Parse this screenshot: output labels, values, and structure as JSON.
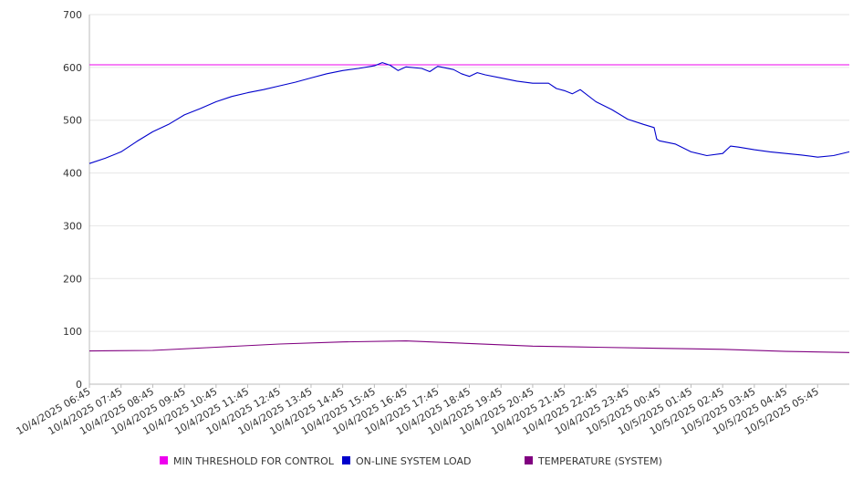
{
  "chart_data": {
    "type": "line",
    "title": "",
    "xlabel": "",
    "ylabel": "",
    "ylim": [
      0,
      700
    ],
    "yticks": [
      0,
      100,
      200,
      300,
      400,
      500,
      600,
      700
    ],
    "grid": true,
    "legend_position": "bottom",
    "x_tick_labels": [
      "10/4/2025 06:45",
      "10/4/2025 07:45",
      "10/4/2025 08:45",
      "10/4/2025 09:45",
      "10/4/2025 10:45",
      "10/4/2025 11:45",
      "10/4/2025 12:45",
      "10/4/2025 13:45",
      "10/4/2025 14:45",
      "10/4/2025 15:45",
      "10/4/2025 16:45",
      "10/4/2025 17:45",
      "10/4/2025 18:45",
      "10/4/2025 19:45",
      "10/4/2025 20:45",
      "10/4/2025 21:45",
      "10/4/2025 22:45",
      "10/4/2025 23:45",
      "10/5/2025 00:45",
      "10/5/2025 01:45",
      "10/5/2025 02:45",
      "10/5/2025 03:45",
      "10/5/2025 04:45",
      "10/5/2025 05:45"
    ],
    "x_range": [
      "10/4/2025 06:45",
      "10/5/2025 06:45"
    ],
    "series": [
      {
        "name": "MIN THRESHOLD FOR CONTROL",
        "color": "#ee00ee",
        "points": [
          [
            "10/4/2025 06:45",
            605
          ],
          [
            "10/5/2025 06:45",
            605
          ]
        ]
      },
      {
        "name": "ON-LINE SYSTEM LOAD",
        "color": "#0000cc",
        "points": [
          [
            "10/4/2025 06:45",
            418
          ],
          [
            "10/4/2025 07:15",
            428
          ],
          [
            "10/4/2025 07:45",
            440
          ],
          [
            "10/4/2025 08:15",
            460
          ],
          [
            "10/4/2025 08:45",
            478
          ],
          [
            "10/4/2025 09:15",
            492
          ],
          [
            "10/4/2025 09:45",
            510
          ],
          [
            "10/4/2025 10:15",
            522
          ],
          [
            "10/4/2025 10:45",
            535
          ],
          [
            "10/4/2025 11:15",
            545
          ],
          [
            "10/4/2025 11:45",
            552
          ],
          [
            "10/4/2025 12:15",
            558
          ],
          [
            "10/4/2025 12:45",
            565
          ],
          [
            "10/4/2025 13:15",
            572
          ],
          [
            "10/4/2025 13:45",
            580
          ],
          [
            "10/4/2025 14:15",
            588
          ],
          [
            "10/4/2025 14:45",
            594
          ],
          [
            "10/4/2025 15:15",
            598
          ],
          [
            "10/4/2025 15:45",
            603
          ],
          [
            "10/4/2025 16:00",
            609
          ],
          [
            "10/4/2025 16:15",
            604
          ],
          [
            "10/4/2025 16:30",
            594
          ],
          [
            "10/4/2025 16:45",
            601
          ],
          [
            "10/4/2025 17:15",
            598
          ],
          [
            "10/4/2025 17:30",
            592
          ],
          [
            "10/4/2025 17:45",
            602
          ],
          [
            "10/4/2025 18:15",
            596
          ],
          [
            "10/4/2025 18:30",
            588
          ],
          [
            "10/4/2025 18:45",
            583
          ],
          [
            "10/4/2025 19:00",
            590
          ],
          [
            "10/4/2025 19:15",
            586
          ],
          [
            "10/4/2025 19:45",
            580
          ],
          [
            "10/4/2025 20:15",
            574
          ],
          [
            "10/4/2025 20:45",
            570
          ],
          [
            "10/4/2025 21:15",
            570
          ],
          [
            "10/4/2025 21:30",
            560
          ],
          [
            "10/4/2025 21:45",
            556
          ],
          [
            "10/4/2025 22:00",
            550
          ],
          [
            "10/4/2025 22:15",
            558
          ],
          [
            "10/4/2025 22:45",
            535
          ],
          [
            "10/4/2025 23:15",
            520
          ],
          [
            "10/4/2025 23:45",
            502
          ],
          [
            "10/5/2025 00:15",
            492
          ],
          [
            "10/5/2025 00:35",
            486
          ],
          [
            "10/5/2025 00:40",
            464
          ],
          [
            "10/5/2025 00:45",
            461
          ],
          [
            "10/5/2025 01:15",
            455
          ],
          [
            "10/5/2025 01:45",
            440
          ],
          [
            "10/5/2025 02:15",
            433
          ],
          [
            "10/5/2025 02:45",
            437
          ],
          [
            "10/5/2025 03:00",
            451
          ],
          [
            "10/5/2025 03:15",
            449
          ],
          [
            "10/5/2025 03:45",
            444
          ],
          [
            "10/5/2025 04:15",
            440
          ],
          [
            "10/5/2025 04:45",
            437
          ],
          [
            "10/5/2025 05:15",
            434
          ],
          [
            "10/5/2025 05:45",
            430
          ],
          [
            "10/5/2025 06:15",
            433
          ],
          [
            "10/5/2025 06:45",
            440
          ]
        ]
      },
      {
        "name": "TEMPERATURE (SYSTEM)",
        "color": "#800080",
        "points": [
          [
            "10/4/2025 06:45",
            63
          ],
          [
            "10/4/2025 08:45",
            64
          ],
          [
            "10/4/2025 10:45",
            70
          ],
          [
            "10/4/2025 12:45",
            76
          ],
          [
            "10/4/2025 14:45",
            80
          ],
          [
            "10/4/2025 16:45",
            82
          ],
          [
            "10/4/2025 18:45",
            77
          ],
          [
            "10/4/2025 20:45",
            72
          ],
          [
            "10/4/2025 22:45",
            70
          ],
          [
            "10/5/2025 00:45",
            68
          ],
          [
            "10/5/2025 02:45",
            66
          ],
          [
            "10/5/2025 04:45",
            62
          ],
          [
            "10/5/2025 06:45",
            60
          ]
        ]
      }
    ]
  }
}
